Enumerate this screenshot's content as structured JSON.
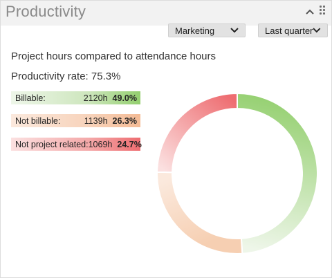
{
  "widget": {
    "title": "Productivity",
    "collapse_icon": "chevron-up-icon",
    "drag_icon": "drag-grip-icon"
  },
  "filters": {
    "department": "Marketing",
    "period": "Last quarter"
  },
  "summary": {
    "subtitle": "Project hours compared to attendance hours",
    "rate_label": "Productivity rate:",
    "rate_value": "75.3%"
  },
  "legend": [
    {
      "name": "Billable:",
      "hours": "2120h",
      "pct": "49.0%",
      "color": "#93cf6e"
    },
    {
      "name": "Not billable:",
      "hours": "1139h",
      "pct": "26.3%",
      "color": "#f4bb95"
    },
    {
      "name": "Not project related:",
      "hours": "1069h",
      "pct": "24.7%",
      "color": "#ee6d71"
    }
  ],
  "chart_data": {
    "type": "pie",
    "title": "",
    "categories": [
      "Billable",
      "Not billable",
      "Not project related"
    ],
    "values": [
      49.0,
      26.3,
      24.7
    ],
    "hours": [
      2120,
      1139,
      1069
    ],
    "colors": [
      "#93cf6e",
      "#f4bb95",
      "#ee6d71"
    ],
    "donut": true
  }
}
